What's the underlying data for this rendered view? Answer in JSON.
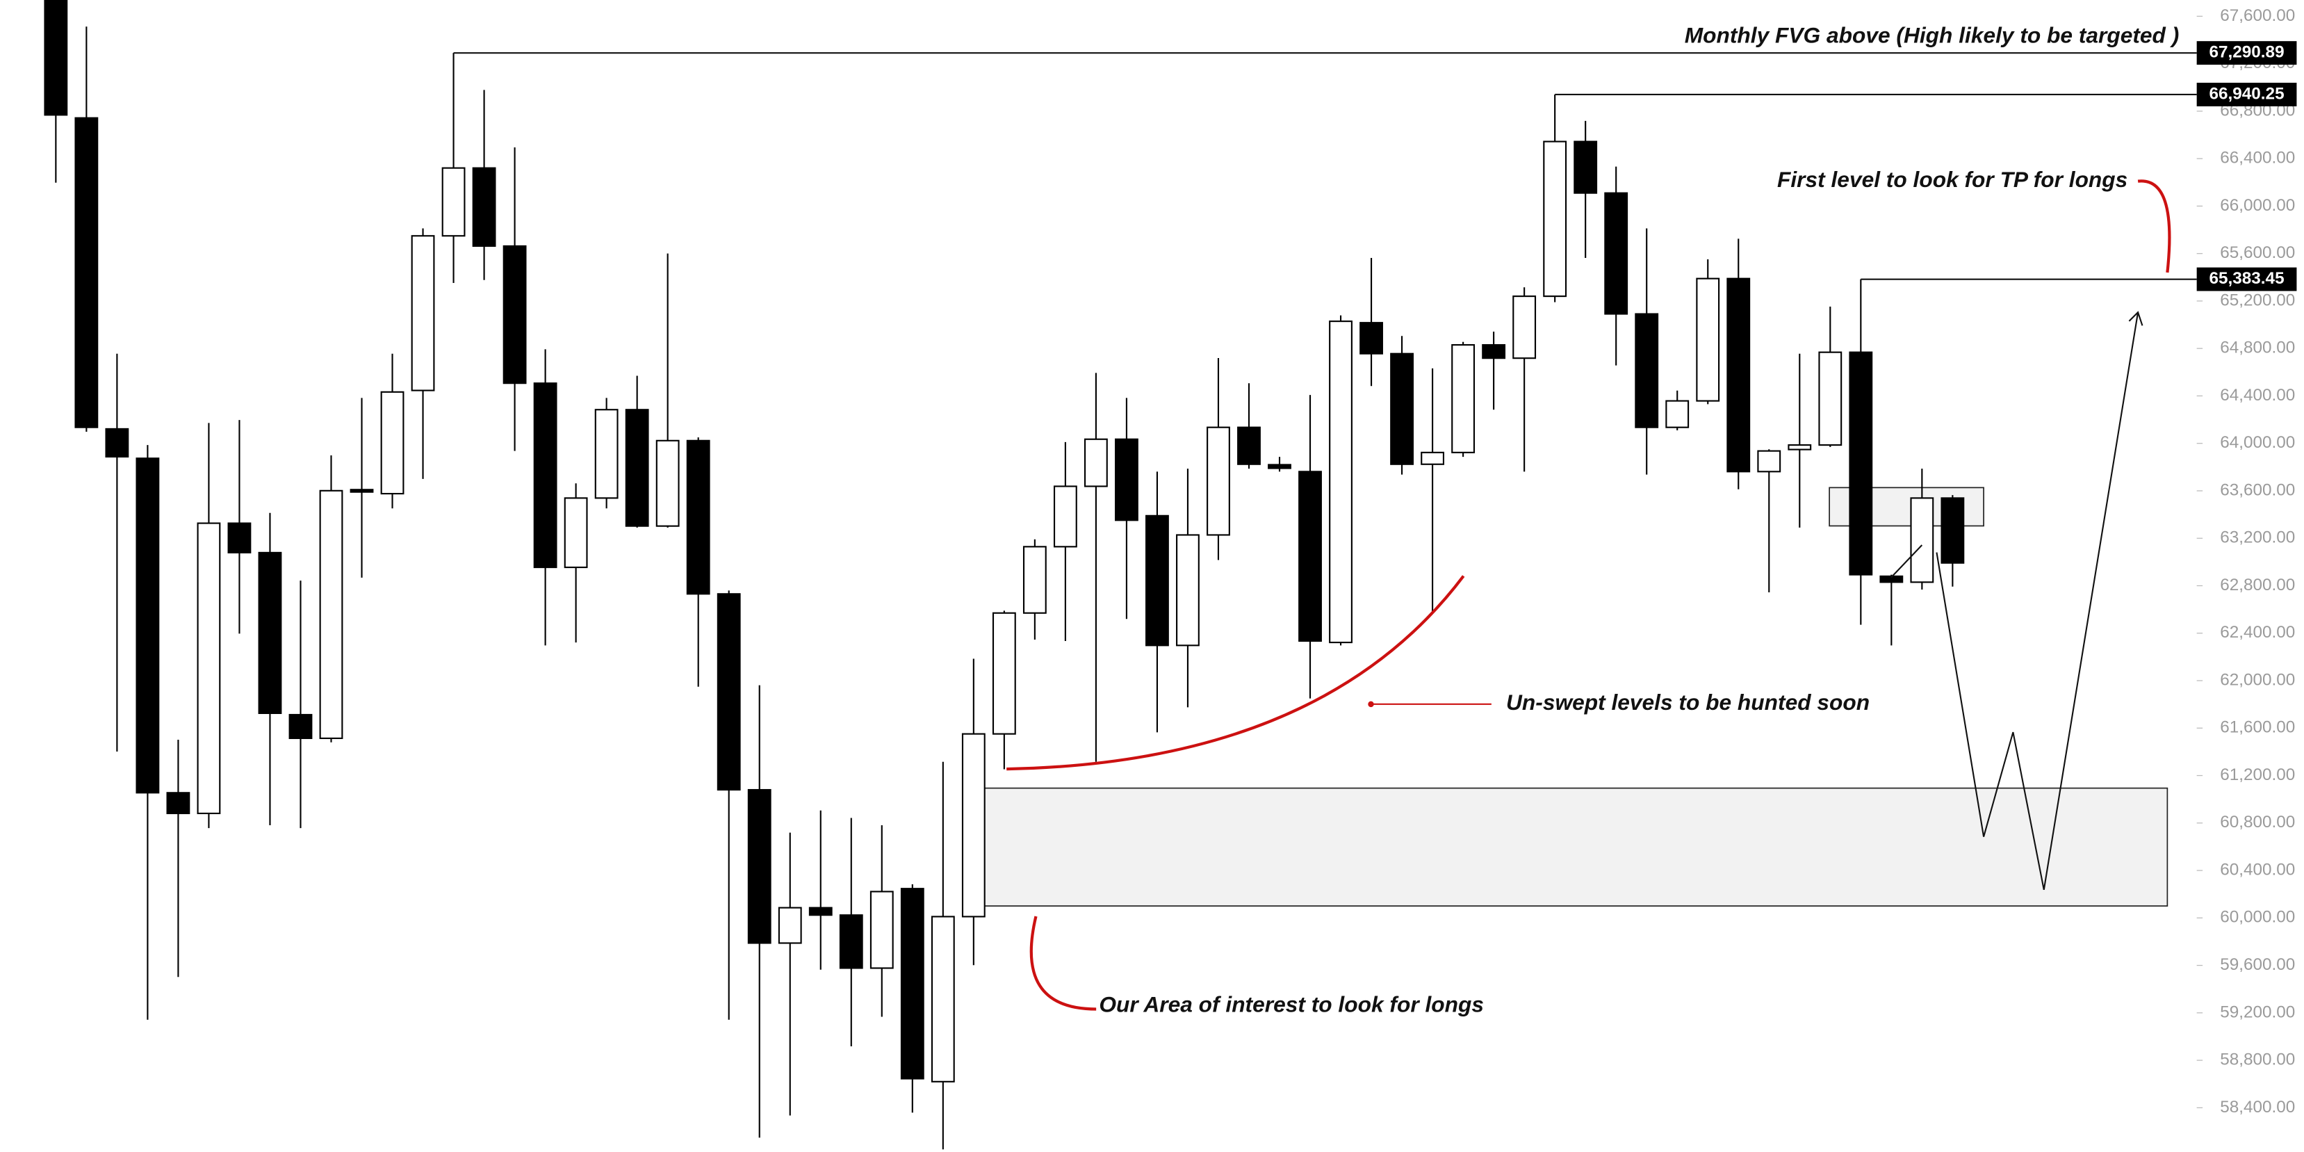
{
  "chart_data": {
    "type": "candlestick",
    "categories": [
      null,
      null,
      null,
      null,
      null,
      null,
      null,
      null,
      null,
      null,
      null,
      null,
      null,
      null,
      null,
      null,
      null,
      null,
      null,
      null,
      null,
      null,
      null,
      null,
      null,
      null,
      null,
      null,
      null,
      null,
      null,
      null,
      null,
      null,
      null,
      null,
      null,
      null,
      null,
      null,
      null,
      null,
      null,
      null,
      null,
      null,
      null,
      null,
      null,
      null,
      null,
      null,
      null,
      null,
      null,
      null,
      null,
      null,
      null,
      null,
      null,
      null,
      null
    ],
    "open": [
      67750,
      66743,
      64122,
      63874,
      61055,
      60881,
      63327,
      63079,
      61713,
      61514,
      63610,
      63576,
      64446,
      65749,
      66321,
      65663,
      64507,
      62955,
      63539,
      64284,
      63303,
      64023,
      62731,
      61080,
      59788,
      60086,
      60024,
      59577,
      60247,
      58620,
      60011,
      61551,
      62570,
      63129,
      63638,
      64035,
      63390,
      62297,
      63228,
      64135,
      63820,
      63762,
      62322,
      65017,
      64756,
      63824,
      63923,
      64830,
      64718,
      65240,
      66544,
      66110,
      65091,
      64135,
      64358,
      65389,
      63762,
      63948,
      63986,
      64768,
      62880,
      62830,
      63539
    ],
    "high": [
      67800,
      67513,
      64756,
      63986,
      61502,
      64172,
      64197,
      63414,
      62843,
      63899,
      64383,
      64756,
      65812,
      67290.89,
      66979,
      66495,
      64793,
      63663,
      64383,
      64570,
      65600,
      64050,
      62760,
      61961,
      60719,
      60906,
      60843,
      60781,
      60284,
      61316,
      62185,
      62590,
      63191,
      64011,
      64594,
      64383,
      63762,
      63787,
      64719,
      64507,
      63886,
      64408,
      65079,
      65563,
      64905,
      64632,
      64855,
      64942,
      65315,
      66940.25,
      66718,
      66333,
      65812,
      64445,
      65551,
      65725,
      63950,
      64756,
      65153,
      65383.45,
      62893,
      63787,
      63564
    ],
    "low": [
      66197,
      64098,
      61402,
      59142,
      59502,
      60757,
      62396,
      60781,
      60757,
      61480,
      62868,
      63452,
      63700,
      65352,
      65377,
      63936,
      62297,
      62322,
      63452,
      63290,
      63290,
      61949,
      59142,
      58148,
      58335,
      59564,
      58918,
      59167,
      58359,
      58049,
      59602,
      61253,
      62346,
      62334,
      61316,
      62520,
      61564,
      61775,
      63017,
      63787,
      63762,
      61850,
      62297,
      64483,
      63737,
      62582,
      63886,
      64284,
      63762,
      65190,
      65563,
      64657,
      63737,
      64110,
      64330,
      63613,
      62744,
      63290,
      63970,
      62471,
      62297,
      62768,
      62793
    ],
    "close": [
      66768,
      64135,
      63887,
      61055,
      60881,
      63327,
      63079,
      61725,
      61514,
      63601,
      63590,
      64433,
      65749,
      66321,
      65663,
      64507,
      62955,
      63539,
      64284,
      63303,
      64023,
      62731,
      61080,
      59788,
      60086,
      60024,
      59577,
      60222,
      58645,
      60011,
      61551,
      62570,
      63129,
      63638,
      64035,
      63352,
      62297,
      63228,
      64135,
      63824,
      63790,
      62334,
      65029,
      64756,
      63824,
      63923,
      64830,
      64718,
      65240,
      66544,
      66110,
      65091,
      64135,
      64358,
      65389,
      63762,
      63936,
      63986,
      64768,
      62893,
      62830,
      63539,
      62992
    ],
    "up_color": "#ffffff",
    "down_color": "#000000",
    "ylim": [
      58027,
      67737
    ],
    "yticks": [
      {
        "value": 58400,
        "label": "58,400.00"
      },
      {
        "value": 58800,
        "label": "58,800.00"
      },
      {
        "value": 59200,
        "label": "59,200.00"
      },
      {
        "value": 59600,
        "label": "59,600.00"
      },
      {
        "value": 60000,
        "label": "60,000.00"
      },
      {
        "value": 60400,
        "label": "60,400.00"
      },
      {
        "value": 60800,
        "label": "60,800.00"
      },
      {
        "value": 61200,
        "label": "61,200.00"
      },
      {
        "value": 61600,
        "label": "61,600.00"
      },
      {
        "value": 62000,
        "label": "62,000.00"
      },
      {
        "value": 62400,
        "label": "62,400.00"
      },
      {
        "value": 62800,
        "label": "62,800.00"
      },
      {
        "value": 63200,
        "label": "63,200.00"
      },
      {
        "value": 63600,
        "label": "63,600.00"
      },
      {
        "value": 64000,
        "label": "64,000.00"
      },
      {
        "value": 64400,
        "label": "64,400.00"
      },
      {
        "value": 64800,
        "label": "64,800.00"
      },
      {
        "value": 65200,
        "label": "65,200.00"
      },
      {
        "value": 65600,
        "label": "65,600.00"
      },
      {
        "value": 66000,
        "label": "66,000.00"
      },
      {
        "value": 66400,
        "label": "66,400.00"
      },
      {
        "value": 66800,
        "label": "66,800.00"
      },
      {
        "value": 67200,
        "label": "67,200.00"
      },
      {
        "value": 67600,
        "label": "67,600.00"
      }
    ],
    "levels": [
      {
        "value": 67290.89,
        "label": "67,290.89",
        "candle": 13
      },
      {
        "value": 66940.25,
        "label": "66,940.25",
        "candle": 49
      },
      {
        "value": 65383.45,
        "label": "65,383.45",
        "candle": 59
      }
    ],
    "annotations": [
      "Monthly FVG above (High likely to be targeted )",
      "First level to look for TP for longs",
      "Un-swept levels to be hunted soon",
      "Our Area of interest to look for longs"
    ]
  }
}
